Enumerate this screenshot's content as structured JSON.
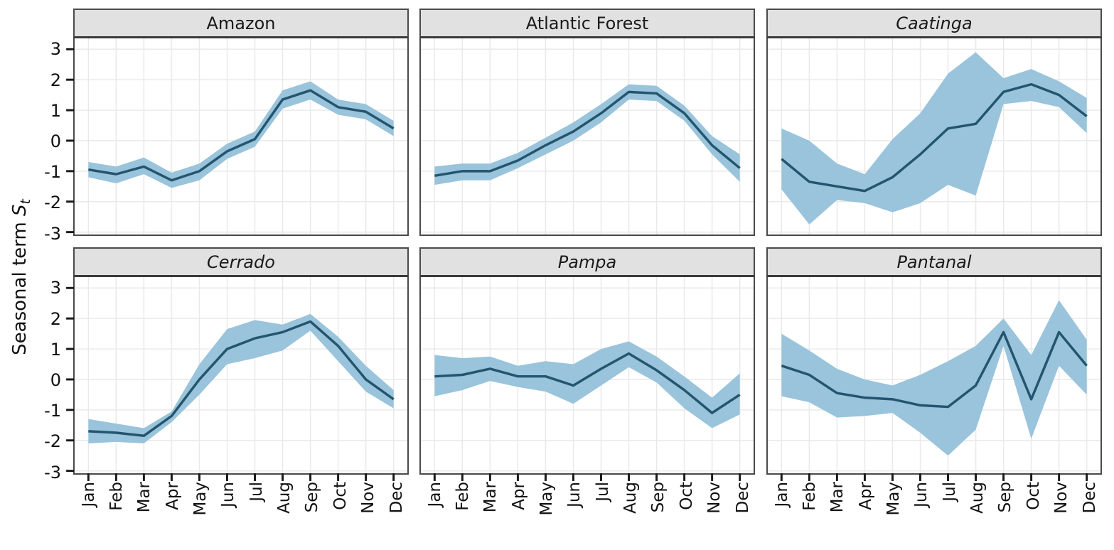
{
  "figure": {
    "y_axis_title": {
      "text": "Seasonal term ",
      "variable": "S",
      "subscript": "t"
    }
  },
  "chart_data": {
    "type": "line",
    "layout_hint": "faceted 2x3 grid of line charts with shaded confidence bands, shared axes, grid on, no legend",
    "x": [
      "Jan",
      "Feb",
      "Mar",
      "Apr",
      "May",
      "Jun",
      "Jul",
      "Aug",
      "Sep",
      "Oct",
      "Nov",
      "Dec"
    ],
    "yticks": [
      3,
      2,
      1,
      0,
      -1,
      -2,
      -3
    ],
    "ylim": [
      -3.1,
      3.35
    ],
    "ylabel": "Seasonal term St",
    "colors": {
      "band": "#99c4db",
      "line": "#24556e",
      "panel_header_bg": "#e1e1e1",
      "panel_border": "#4a4a4a",
      "gridline": "#e9e9e9",
      "text": "#1a1a1a"
    },
    "panels": [
      {
        "title": "Amazon",
        "italic": false,
        "mean": [
          -0.95,
          -1.1,
          -0.85,
          -1.3,
          -1.0,
          -0.35,
          0.05,
          1.35,
          1.65,
          1.1,
          0.95,
          0.4
        ],
        "upper": [
          -0.7,
          -0.85,
          -0.55,
          -1.05,
          -0.75,
          -0.1,
          0.3,
          1.65,
          1.95,
          1.35,
          1.2,
          0.65
        ],
        "lower": [
          -1.2,
          -1.4,
          -1.1,
          -1.55,
          -1.3,
          -0.6,
          -0.2,
          1.05,
          1.35,
          0.85,
          0.7,
          0.15
        ]
      },
      {
        "title": "Atlantic Forest",
        "italic": false,
        "mean": [
          -1.15,
          -1.0,
          -1.0,
          -0.65,
          -0.15,
          0.3,
          0.9,
          1.6,
          1.55,
          0.9,
          -0.15,
          -0.9
        ],
        "upper": [
          -0.85,
          -0.75,
          -0.75,
          -0.4,
          0.1,
          0.6,
          1.2,
          1.85,
          1.8,
          1.15,
          0.15,
          -0.45
        ],
        "lower": [
          -1.45,
          -1.3,
          -1.3,
          -0.9,
          -0.45,
          0.0,
          0.6,
          1.35,
          1.3,
          0.65,
          -0.45,
          -1.35
        ]
      },
      {
        "title": "Caatinga",
        "italic": true,
        "mean": [
          -0.6,
          -1.35,
          -1.5,
          -1.65,
          -1.2,
          -0.45,
          0.4,
          0.55,
          1.6,
          1.85,
          1.5,
          0.8
        ],
        "upper": [
          0.4,
          0.0,
          -0.75,
          -1.1,
          0.05,
          0.9,
          2.2,
          2.9,
          2.05,
          2.35,
          1.95,
          1.4
        ],
        "lower": [
          -1.6,
          -2.75,
          -1.95,
          -2.05,
          -2.35,
          -2.05,
          -1.45,
          -1.8,
          1.2,
          1.3,
          1.1,
          0.25
        ]
      },
      {
        "title": "Cerrado",
        "italic": true,
        "mean": [
          -1.7,
          -1.75,
          -1.85,
          -1.2,
          0.0,
          1.0,
          1.35,
          1.55,
          1.9,
          1.1,
          0.0,
          -0.65
        ],
        "upper": [
          -1.3,
          -1.45,
          -1.6,
          -1.05,
          0.5,
          1.65,
          1.95,
          1.8,
          2.15,
          1.4,
          0.45,
          -0.35
        ],
        "lower": [
          -2.1,
          -2.05,
          -2.1,
          -1.4,
          -0.5,
          0.5,
          0.7,
          0.95,
          1.6,
          0.6,
          -0.4,
          -0.95
        ]
      },
      {
        "title": "Pampa",
        "italic": true,
        "mean": [
          0.1,
          0.15,
          0.35,
          0.1,
          0.1,
          -0.2,
          0.35,
          0.85,
          0.3,
          -0.35,
          -1.1,
          -0.5
        ],
        "upper": [
          0.8,
          0.7,
          0.75,
          0.45,
          0.6,
          0.5,
          1.0,
          1.25,
          0.75,
          0.1,
          -0.6,
          0.2
        ],
        "lower": [
          -0.55,
          -0.35,
          -0.05,
          -0.25,
          -0.4,
          -0.8,
          -0.2,
          0.4,
          -0.1,
          -0.95,
          -1.6,
          -1.15
        ]
      },
      {
        "title": "Pantanal",
        "italic": true,
        "mean": [
          0.45,
          0.15,
          -0.45,
          -0.6,
          -0.65,
          -0.85,
          -0.9,
          -0.2,
          1.55,
          -0.65,
          1.55,
          0.45
        ],
        "upper": [
          1.5,
          0.95,
          0.35,
          0.0,
          -0.2,
          0.15,
          0.6,
          1.1,
          2.0,
          0.8,
          2.6,
          1.3
        ],
        "lower": [
          -0.55,
          -0.75,
          -1.25,
          -1.2,
          -1.1,
          -1.75,
          -2.5,
          -1.65,
          1.1,
          -1.95,
          0.45,
          -0.5
        ]
      }
    ]
  }
}
